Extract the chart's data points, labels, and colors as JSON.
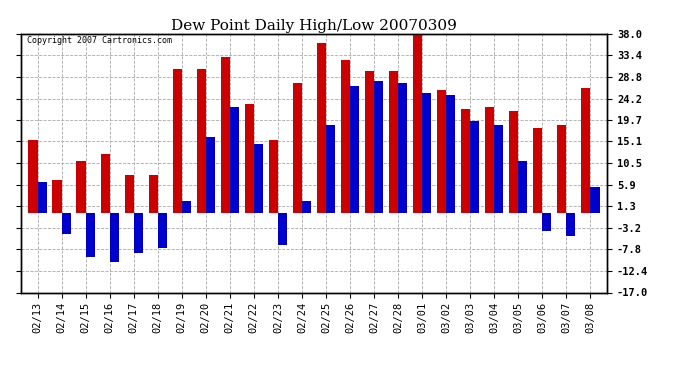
{
  "title": "Dew Point Daily High/Low 20070309",
  "copyright": "Copyright 2007 Cartronics.com",
  "dates": [
    "02/13",
    "02/14",
    "02/15",
    "02/16",
    "02/17",
    "02/18",
    "02/19",
    "02/20",
    "02/21",
    "02/22",
    "02/23",
    "02/24",
    "02/25",
    "02/26",
    "02/27",
    "02/28",
    "03/01",
    "03/02",
    "03/03",
    "03/04",
    "03/05",
    "03/06",
    "03/07",
    "03/08"
  ],
  "highs": [
    15.5,
    7.0,
    11.0,
    12.5,
    8.0,
    8.0,
    30.5,
    30.5,
    33.0,
    23.0,
    15.5,
    27.5,
    36.0,
    32.5,
    30.0,
    30.0,
    39.0,
    26.0,
    22.0,
    22.5,
    21.5,
    18.0,
    18.5,
    26.5
  ],
  "lows": [
    6.5,
    -4.5,
    -9.5,
    -10.5,
    -8.5,
    -7.5,
    2.5,
    16.0,
    22.5,
    14.5,
    -7.0,
    2.5,
    18.5,
    27.0,
    28.0,
    27.5,
    25.5,
    25.0,
    19.5,
    18.5,
    11.0,
    -4.0,
    -5.0,
    5.5
  ],
  "high_color": "#cc0000",
  "low_color": "#0000cc",
  "ylim": [
    -17.0,
    38.0
  ],
  "yticks": [
    -17.0,
    -12.4,
    -7.8,
    -3.2,
    1.3,
    5.9,
    10.5,
    15.1,
    19.7,
    24.2,
    28.8,
    33.4,
    38.0
  ],
  "background_color": "#ffffff",
  "grid_color": "#aaaaaa",
  "bar_width": 0.38,
  "title_fontsize": 11,
  "tick_fontsize": 7.5
}
